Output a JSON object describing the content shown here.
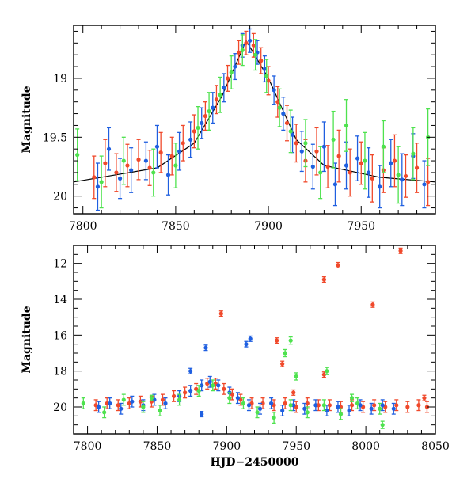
{
  "chart_data": [
    {
      "type": "scatter",
      "panel": "top",
      "title": "",
      "xlabel": "",
      "ylabel": "Magnitude",
      "xlim": [
        7795,
        7990
      ],
      "ylim": [
        20.15,
        18.55
      ],
      "y_inverted": true,
      "xticks": [
        7800,
        7850,
        7900,
        7950
      ],
      "yticks": [
        19,
        19.5,
        20
      ],
      "ytick_labels": [
        "19",
        "19.5",
        "20"
      ],
      "grid": false,
      "legend": "none",
      "colors": {
        "red": "#f0492b",
        "blue": "#1f5fe0",
        "green": "#4ee24e",
        "line": "#000000"
      },
      "series": [
        {
          "color": "red",
          "marker": "circle-errorbar",
          "trend": "baseline ~19.8 rising to peak ~18.65 near 7888, declining to ~19.8 by 7920",
          "points": [
            [
              7806,
              19.84,
              0.18
            ],
            [
              7812,
              19.72,
              0.2
            ],
            [
              7818,
              19.8,
              0.16
            ],
            [
              7824,
              19.74,
              0.18
            ],
            [
              7830,
              19.69,
              0.17
            ],
            [
              7836,
              19.76,
              0.15
            ],
            [
              7842,
              19.63,
              0.17
            ],
            [
              7848,
              19.66,
              0.16
            ],
            [
              7854,
              19.55,
              0.15
            ],
            [
              7860,
              19.45,
              0.14
            ],
            [
              7866,
              19.32,
              0.12
            ],
            [
              7872,
              19.18,
              0.12
            ],
            [
              7878,
              19.0,
              0.11
            ],
            [
              7884,
              18.78,
              0.1
            ],
            [
              7888,
              18.7,
              0.1
            ],
            [
              7892,
              18.72,
              0.1
            ],
            [
              7896,
              18.85,
              0.11
            ],
            [
              7900,
              19.02,
              0.12
            ],
            [
              7905,
              19.2,
              0.13
            ],
            [
              7910,
              19.38,
              0.15
            ],
            [
              7915,
              19.55,
              0.16
            ],
            [
              7920,
              19.7,
              0.18
            ],
            [
              7926,
              19.62,
              0.2
            ],
            [
              7932,
              19.75,
              0.18
            ],
            [
              7938,
              19.66,
              0.22
            ],
            [
              7944,
              19.8,
              0.2
            ],
            [
              7950,
              19.72,
              0.18
            ],
            [
              7956,
              19.85,
              0.2
            ],
            [
              7962,
              19.78,
              0.19
            ],
            [
              7968,
              19.7,
              0.22
            ],
            [
              7974,
              19.83,
              0.18
            ],
            [
              7980,
              19.76,
              0.21
            ],
            [
              7986,
              19.88,
              0.2
            ]
          ]
        },
        {
          "color": "blue",
          "marker": "circle-errorbar",
          "points": [
            [
              7808,
              19.92,
              0.2
            ],
            [
              7814,
              19.6,
              0.18
            ],
            [
              7820,
              19.85,
              0.17
            ],
            [
              7826,
              19.78,
              0.19
            ],
            [
              7834,
              19.7,
              0.16
            ],
            [
              7840,
              19.58,
              0.18
            ],
            [
              7846,
              19.82,
              0.17
            ],
            [
              7852,
              19.62,
              0.16
            ],
            [
              7858,
              19.52,
              0.15
            ],
            [
              7864,
              19.38,
              0.13
            ],
            [
              7870,
              19.25,
              0.13
            ],
            [
              7876,
              19.08,
              0.12
            ],
            [
              7882,
              18.9,
              0.11
            ],
            [
              7886,
              18.72,
              0.1
            ],
            [
              7890,
              18.68,
              0.1
            ],
            [
              7894,
              18.78,
              0.1
            ],
            [
              7898,
              18.92,
              0.11
            ],
            [
              7903,
              19.1,
              0.12
            ],
            [
              7908,
              19.3,
              0.14
            ],
            [
              7913,
              19.48,
              0.15
            ],
            [
              7918,
              19.62,
              0.17
            ],
            [
              7924,
              19.75,
              0.19
            ],
            [
              7930,
              19.58,
              0.21
            ],
            [
              7936,
              19.9,
              0.18
            ],
            [
              7942,
              19.74,
              0.2
            ],
            [
              7948,
              19.68,
              0.19
            ],
            [
              7954,
              19.8,
              0.21
            ],
            [
              7960,
              19.92,
              0.18
            ],
            [
              7966,
              19.72,
              0.2
            ],
            [
              7972,
              19.86,
              0.22
            ],
            [
              7978,
              19.66,
              0.19
            ],
            [
              7984,
              19.9,
              0.2
            ]
          ]
        },
        {
          "color": "green",
          "marker": "circle-errorbar",
          "points": [
            [
              7797,
              19.65,
              0.22
            ],
            [
              7810,
              19.88,
              0.22
            ],
            [
              7822,
              19.7,
              0.2
            ],
            [
              7838,
              19.8,
              0.2
            ],
            [
              7850,
              19.74,
              0.19
            ],
            [
              7862,
              19.42,
              0.18
            ],
            [
              7868,
              19.28,
              0.16
            ],
            [
              7874,
              19.14,
              0.15
            ],
            [
              7880,
              18.95,
              0.14
            ],
            [
              7886,
              18.76,
              0.13
            ],
            [
              7893,
              18.8,
              0.13
            ],
            [
              7899,
              18.98,
              0.14
            ],
            [
              7906,
              19.25,
              0.16
            ],
            [
              7912,
              19.45,
              0.18
            ],
            [
              7920,
              19.55,
              0.2
            ],
            [
              7928,
              19.8,
              0.22
            ],
            [
              7935,
              19.52,
              0.24
            ],
            [
              7942,
              19.4,
              0.22
            ],
            [
              7952,
              19.7,
              0.24
            ],
            [
              7962,
              19.58,
              0.22
            ],
            [
              7970,
              19.82,
              0.24
            ],
            [
              7978,
              19.64,
              0.22
            ],
            [
              7986,
              19.5,
              0.24
            ]
          ]
        }
      ],
      "model_line": {
        "color": "line",
        "points": [
          [
            7795,
            19.88
          ],
          [
            7840,
            19.76
          ],
          [
            7860,
            19.55
          ],
          [
            7875,
            19.15
          ],
          [
            7888,
            18.68
          ],
          [
            7900,
            19.0
          ],
          [
            7915,
            19.52
          ],
          [
            7930,
            19.74
          ],
          [
            7960,
            19.84
          ],
          [
            7990,
            19.88
          ]
        ]
      }
    },
    {
      "type": "scatter",
      "panel": "bottom",
      "title": "",
      "xlabel": "HJD−2450000",
      "ylabel": "Magnitude",
      "xlim": [
        7790,
        8050
      ],
      "ylim": [
        21.5,
        11.0
      ],
      "y_inverted": true,
      "xticks": [
        7800,
        7850,
        7900,
        7950,
        8000,
        8050
      ],
      "yticks": [
        12,
        14,
        16,
        18,
        20
      ],
      "grid": false,
      "legend": "none",
      "colors": {
        "red": "#f0492b",
        "blue": "#1f5fe0",
        "green": "#4ee24e"
      },
      "series": [
        {
          "color": "red",
          "marker": "circle-errorbar",
          "points": [
            [
              7806,
              19.9,
              0.3
            ],
            [
              7814,
              19.8,
              0.3
            ],
            [
              7822,
              19.9,
              0.3
            ],
            [
              7830,
              19.8,
              0.3
            ],
            [
              7838,
              19.7,
              0.3
            ],
            [
              7846,
              19.7,
              0.3
            ],
            [
              7854,
              19.6,
              0.3
            ],
            [
              7862,
              19.4,
              0.3
            ],
            [
              7870,
              19.2,
              0.3
            ],
            [
              7878,
              19.0,
              0.3
            ],
            [
              7886,
              18.7,
              0.3
            ],
            [
              7892,
              18.7,
              0.3
            ],
            [
              7898,
              19.0,
              0.3
            ],
            [
              7904,
              19.3,
              0.3
            ],
            [
              7910,
              19.6,
              0.3
            ],
            [
              7918,
              19.8,
              0.3
            ],
            [
              7926,
              19.8,
              0.3
            ],
            [
              7934,
              19.9,
              0.3
            ],
            [
              7942,
              19.8,
              0.3
            ],
            [
              7950,
              20.0,
              0.3
            ],
            [
              7958,
              19.8,
              0.3
            ],
            [
              7966,
              19.9,
              0.3
            ],
            [
              7974,
              19.9,
              0.3
            ],
            [
              7982,
              20.0,
              0.3
            ],
            [
              7990,
              19.9,
              0.3
            ],
            [
              7998,
              20.0,
              0.3
            ],
            [
              8006,
              19.9,
              0.3
            ],
            [
              8014,
              20.0,
              0.3
            ],
            [
              8022,
              19.9,
              0.3
            ],
            [
              8030,
              20.0,
              0.3
            ],
            [
              8038,
              19.9,
              0.3
            ],
            [
              8044,
              20.0,
              0.3
            ]
          ]
        },
        {
          "color": "red",
          "marker": "circle-errorbar",
          "role": "outliers",
          "points": [
            [
              7896,
              14.8,
              0.15
            ],
            [
              7936,
              16.3,
              0.15
            ],
            [
              7940,
              17.6,
              0.15
            ],
            [
              7948,
              19.2,
              0.15
            ],
            [
              7970,
              12.9,
              0.15
            ],
            [
              7970,
              18.2,
              0.15
            ],
            [
              7980,
              12.1,
              0.15
            ],
            [
              8005,
              14.3,
              0.15
            ],
            [
              8025,
              11.3,
              0.15
            ],
            [
              8042,
              19.5,
              0.15
            ]
          ]
        },
        {
          "color": "blue",
          "marker": "circle-errorbar",
          "points": [
            [
              7808,
              20.0,
              0.3
            ],
            [
              7816,
              19.8,
              0.3
            ],
            [
              7824,
              20.1,
              0.3
            ],
            [
              7832,
              19.7,
              0.3
            ],
            [
              7840,
              19.9,
              0.3
            ],
            [
              7848,
              19.6,
              0.3
            ],
            [
              7856,
              19.8,
              0.3
            ],
            [
              7866,
              19.4,
              0.3
            ],
            [
              7874,
              19.1,
              0.3
            ],
            [
              7882,
              18.8,
              0.3
            ],
            [
              7888,
              18.6,
              0.3
            ],
            [
              7894,
              18.8,
              0.3
            ],
            [
              7902,
              19.2,
              0.3
            ],
            [
              7908,
              19.5,
              0.3
            ],
            [
              7916,
              19.9,
              0.3
            ],
            [
              7924,
              20.1,
              0.3
            ],
            [
              7932,
              19.8,
              0.3
            ],
            [
              7940,
              20.2,
              0.3
            ],
            [
              7948,
              19.9,
              0.3
            ],
            [
              7956,
              20.1,
              0.3
            ],
            [
              7964,
              19.9,
              0.3
            ],
            [
              7972,
              20.2,
              0.3
            ],
            [
              7980,
              20.0,
              0.3
            ],
            [
              7988,
              20.2,
              0.3
            ],
            [
              7996,
              19.9,
              0.3
            ],
            [
              8004,
              20.1,
              0.3
            ],
            [
              8012,
              19.9,
              0.3
            ],
            [
              8020,
              20.1,
              0.3
            ]
          ]
        },
        {
          "color": "blue",
          "marker": "circle-errorbar",
          "role": "outliers",
          "points": [
            [
              7874,
              18.0,
              0.15
            ],
            [
              7885,
              16.7,
              0.15
            ],
            [
              7914,
              16.5,
              0.15
            ],
            [
              7917,
              16.2,
              0.15
            ],
            [
              7882,
              20.4,
              0.15
            ]
          ]
        },
        {
          "color": "green",
          "marker": "circle-errorbar",
          "points": [
            [
              7797,
              19.8,
              0.3
            ],
            [
              7812,
              20.3,
              0.3
            ],
            [
              7826,
              19.6,
              0.3
            ],
            [
              7840,
              20.0,
              0.3
            ],
            [
              7852,
              20.2,
              0.3
            ],
            [
              7866,
              19.6,
              0.3
            ],
            [
              7880,
              19.1,
              0.3
            ],
            [
              7890,
              18.8,
              0.3
            ],
            [
              7902,
              19.5,
              0.3
            ],
            [
              7912,
              19.8,
              0.3
            ],
            [
              7922,
              20.3,
              0.3
            ],
            [
              7934,
              20.6,
              0.3
            ],
            [
              7946,
              19.9,
              0.3
            ],
            [
              7958,
              20.3,
              0.3
            ],
            [
              7970,
              19.9,
              0.3
            ],
            [
              7982,
              20.4,
              0.3
            ],
            [
              7994,
              19.8,
              0.3
            ],
            [
              8010,
              20.1,
              0.3
            ]
          ]
        },
        {
          "color": "green",
          "marker": "circle-errorbar",
          "role": "outliers",
          "points": [
            [
              7846,
              19.5,
              0.15
            ],
            [
              7942,
              17.0,
              0.2
            ],
            [
              7946,
              16.3,
              0.2
            ],
            [
              7950,
              18.3,
              0.2
            ],
            [
              7972,
              18.0,
              0.2
            ],
            [
              7990,
              19.5,
              0.2
            ],
            [
              8012,
              21.0,
              0.2
            ]
          ]
        }
      ]
    }
  ]
}
